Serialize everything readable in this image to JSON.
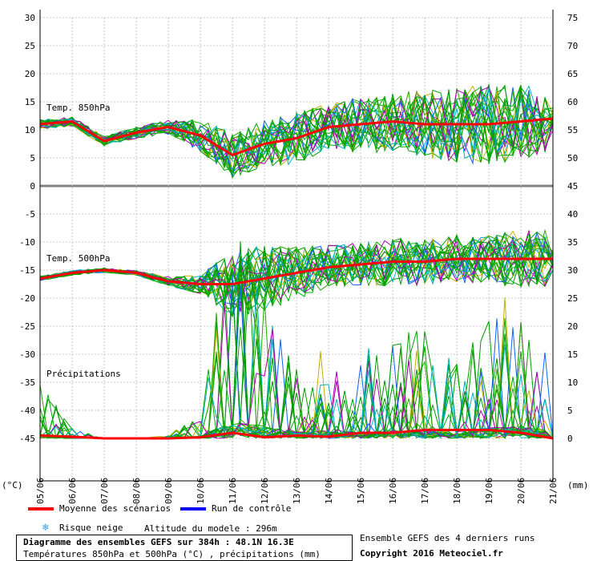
{
  "axes": {
    "left_unit": "(°C)",
    "right_unit": "(mm)",
    "left_ticks": [
      30,
      25,
      20,
      15,
      10,
      5,
      0,
      -5,
      -10,
      -15,
      -20,
      -25,
      -30,
      -35,
      -40,
      -45
    ],
    "right_upper_ticks": [
      75,
      70,
      65,
      60,
      55,
      50,
      45
    ],
    "right_lower_ticks": [
      40,
      35,
      30,
      25,
      20,
      15,
      10,
      5,
      0
    ],
    "x_labels": [
      "05/06",
      "06/06",
      "07/06",
      "08/06",
      "09/06",
      "10/06",
      "11/06",
      "12/06",
      "13/06",
      "14/06",
      "15/06",
      "16/06",
      "17/06",
      "18/06",
      "19/06",
      "20/06",
      "21/06"
    ]
  },
  "panels": {
    "t850_label": "Temp. 850hPa",
    "t500_label": "Temp. 500hPa",
    "precip_label": "Précipitations"
  },
  "legend": {
    "mean_label": "Moyenne des scénarios",
    "control_label": "Run de contrôle",
    "snow_label": "Risque neige",
    "altitude_label": "Altitude du modele : 296m",
    "ensemble_label": "Ensemble GEFS des 4 derniers runs",
    "copyright": "Copyright 2016 Meteociel.fr",
    "mean_color": "#ff0000",
    "control_color": "#0000ff",
    "snow_icon": "snowflake-icon"
  },
  "info_box": {
    "title": "Diagramme des ensembles GEFS sur 384h : 48.1N 16.3E",
    "subtitle": "Températures 850hPa et 500hPa (°C) , précipitations (mm)"
  },
  "chart_data": {
    "type": "line",
    "x": [
      "05/06",
      "06/06",
      "07/06",
      "08/06",
      "09/06",
      "10/06",
      "11/06",
      "12/06",
      "13/06",
      "14/06",
      "15/06",
      "16/06",
      "17/06",
      "18/06",
      "19/06",
      "20/06",
      "21/06"
    ],
    "series": [
      {
        "name": "Temp. 850hPa",
        "unit": "°C",
        "mean": [
          11,
          11.5,
          8,
          9.5,
          10.5,
          9,
          5.5,
          7.5,
          8.5,
          10.5,
          11,
          11.5,
          11,
          11,
          11,
          11.5,
          12
        ],
        "spread_low": [
          10,
          10,
          7,
          8,
          9,
          5,
          1.5,
          3,
          4,
          6,
          6,
          6,
          6,
          5,
          5,
          5,
          6
        ],
        "spread_high": [
          12,
          12,
          9,
          10.5,
          12,
          12,
          11,
          13,
          15,
          16,
          18,
          19,
          20,
          21,
          22,
          21,
          20
        ]
      },
      {
        "name": "Temp. 500hPa",
        "unit": "°C",
        "mean": [
          -16.5,
          -15.5,
          -15,
          -15.5,
          -17,
          -17.5,
          -17.5,
          -16.5,
          -15.5,
          -14.5,
          -14,
          -13.5,
          -13.5,
          -13,
          -13,
          -13,
          -13
        ],
        "spread_low": [
          -17,
          -16,
          -15.5,
          -16,
          -18,
          -19,
          -27,
          -25,
          -21,
          -19,
          -19,
          -19,
          -19,
          -19,
          -19,
          -20,
          -20
        ],
        "spread_high": [
          -16,
          -15,
          -14.5,
          -15,
          -16,
          -15,
          -13,
          -11,
          -10,
          -9.5,
          -9.5,
          -9,
          -9,
          -9,
          -8.5,
          -8,
          -8
        ]
      },
      {
        "name": "Précipitations",
        "unit": "mm",
        "mean": [
          0.5,
          0.3,
          0,
          0,
          0,
          0.2,
          1,
          0.2,
          0.5,
          0.3,
          1,
          1,
          1.5,
          1.5,
          1.5,
          1,
          0
        ],
        "spread_high": [
          10,
          2,
          0,
          0,
          0.5,
          5,
          40,
          27,
          15,
          16,
          15,
          20,
          20,
          15,
          25,
          30,
          15
        ]
      }
    ],
    "ylim_left": [
      -45,
      30
    ],
    "ylim_right_upper": [
      45,
      75
    ],
    "ylim_right_lower": [
      0,
      40
    ],
    "grid": true
  }
}
